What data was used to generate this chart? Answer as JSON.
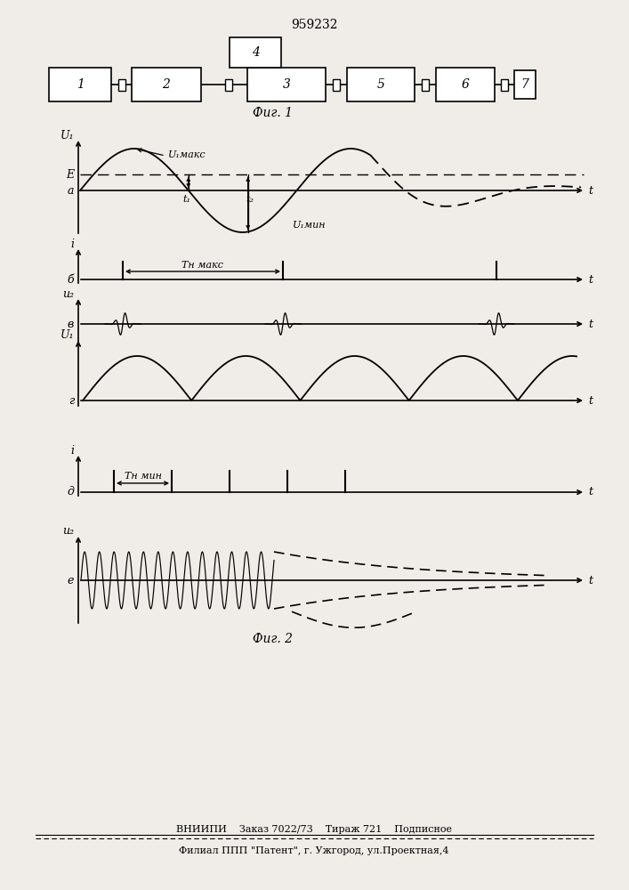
{
  "patent_number": "959232",
  "fig1_label": "Фиг. 1",
  "fig2_label": "Фиг. 2",
  "footer_line1": "ВНИИПИ    Заказ 7022/73    Тираж 721    Подписное",
  "footer_line2": "Филиал ППП \"Патент\", г. Ужгород, ул.Проектная,4",
  "bg_color": "#f0ede8"
}
